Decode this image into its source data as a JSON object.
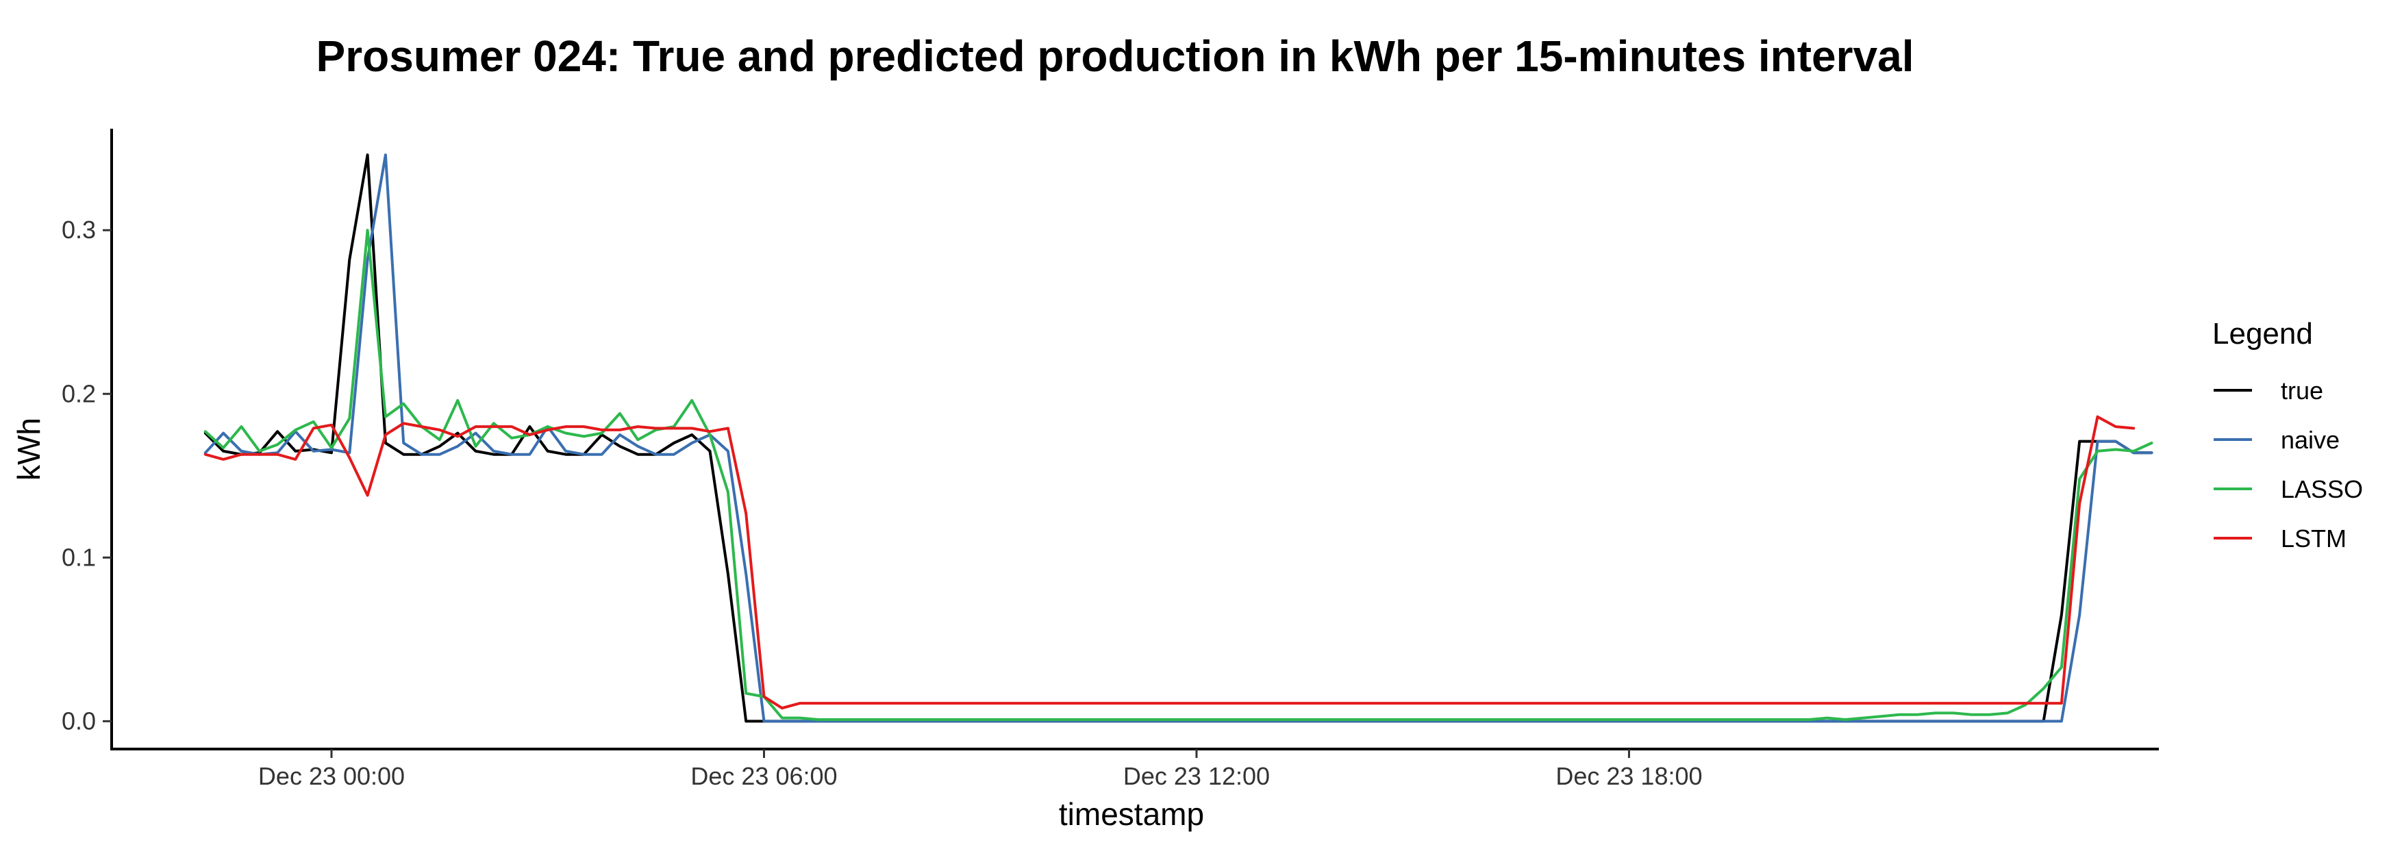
{
  "chart_data": {
    "type": "line",
    "title": "Prosumer 024: True and predicted production in kWh per 15-minutes interval",
    "xlabel": "timestamp",
    "ylabel": "kWh",
    "x_start": "Dec 23 00:00",
    "x_start_hours": -1.75,
    "x_step_hours": 0.25,
    "xlim_hours": [
      -3.05,
      25.35
    ],
    "ylim": [
      -0.017,
      0.362
    ],
    "x_ticks": [
      {
        "label": "Dec 23 00:00",
        "hours": 0
      },
      {
        "label": "Dec 23 06:00",
        "hours": 6
      },
      {
        "label": "Dec 23 12:00",
        "hours": 12
      },
      {
        "label": "Dec 23 18:00",
        "hours": 18
      }
    ],
    "y_ticks": [
      {
        "label": "0.0",
        "value": 0.0
      },
      {
        "label": "0.1",
        "value": 0.1
      },
      {
        "label": "0.2",
        "value": 0.2
      },
      {
        "label": "0.3",
        "value": 0.3
      }
    ],
    "grid": false,
    "legend": {
      "title": "Legend",
      "position": "right"
    },
    "series": [
      {
        "name": "true",
        "color": "#000000",
        "values": [
          0.176,
          0.165,
          0.163,
          0.164,
          0.177,
          0.165,
          0.166,
          0.164,
          0.282,
          0.346,
          0.17,
          0.163,
          0.163,
          0.168,
          0.176,
          0.165,
          0.163,
          0.163,
          0.18,
          0.165,
          0.163,
          0.163,
          0.175,
          0.168,
          0.163,
          0.163,
          0.17,
          0.175,
          0.165,
          0.09,
          0.0,
          0.0,
          0.0,
          0.0,
          0.0,
          0.0,
          0.0,
          0.0,
          0.0,
          0.0,
          0.0,
          0.0,
          0.0,
          0.0,
          0.0,
          0.0,
          0.0,
          0.0,
          0.0,
          0.0,
          0.0,
          0.0,
          0.0,
          0.0,
          0.0,
          0.0,
          0.0,
          0.0,
          0.0,
          0.0,
          0.0,
          0.0,
          0.0,
          0.0,
          0.0,
          0.0,
          0.0,
          0.0,
          0.0,
          0.0,
          0.0,
          0.0,
          0.0,
          0.0,
          0.0,
          0.0,
          0.0,
          0.0,
          0.0,
          0.0,
          0.0,
          0.0,
          0.0,
          0.0,
          0.0,
          0.0,
          0.0,
          0.0,
          0.0,
          0.0,
          0.0,
          0.0,
          0.0,
          0.0,
          0.0,
          0.0,
          0.0,
          0.0,
          0.0,
          0.0,
          0.0,
          0.0,
          0.0,
          0.065,
          0.171,
          0.171,
          0.171,
          0.164,
          0.164
        ]
      },
      {
        "name": "naive",
        "color": "#3a6fb0",
        "values": [
          0.164,
          0.176,
          0.165,
          0.163,
          0.164,
          0.177,
          0.165,
          0.166,
          0.164,
          0.282,
          0.346,
          0.17,
          0.163,
          0.163,
          0.168,
          0.176,
          0.165,
          0.163,
          0.163,
          0.18,
          0.165,
          0.163,
          0.163,
          0.175,
          0.168,
          0.163,
          0.163,
          0.17,
          0.175,
          0.165,
          0.09,
          0.0,
          0.0,
          0.0,
          0.0,
          0.0,
          0.0,
          0.0,
          0.0,
          0.0,
          0.0,
          0.0,
          0.0,
          0.0,
          0.0,
          0.0,
          0.0,
          0.0,
          0.0,
          0.0,
          0.0,
          0.0,
          0.0,
          0.0,
          0.0,
          0.0,
          0.0,
          0.0,
          0.0,
          0.0,
          0.0,
          0.0,
          0.0,
          0.0,
          0.0,
          0.0,
          0.0,
          0.0,
          0.0,
          0.0,
          0.0,
          0.0,
          0.0,
          0.0,
          0.0,
          0.0,
          0.0,
          0.0,
          0.0,
          0.0,
          0.0,
          0.0,
          0.0,
          0.0,
          0.0,
          0.0,
          0.0,
          0.0,
          0.0,
          0.0,
          0.0,
          0.0,
          0.0,
          0.0,
          0.0,
          0.0,
          0.0,
          0.0,
          0.0,
          0.0,
          0.0,
          0.0,
          0.0,
          0.0,
          0.065,
          0.171,
          0.171,
          0.164,
          0.164
        ]
      },
      {
        "name": "LASSO",
        "color": "#2db84d",
        "values": [
          0.177,
          0.167,
          0.18,
          0.165,
          0.169,
          0.178,
          0.183,
          0.167,
          0.185,
          0.3,
          0.186,
          0.194,
          0.18,
          0.172,
          0.196,
          0.168,
          0.182,
          0.173,
          0.175,
          0.18,
          0.176,
          0.174,
          0.176,
          0.188,
          0.172,
          0.178,
          0.18,
          0.196,
          0.175,
          0.14,
          0.017,
          0.015,
          0.002,
          0.002,
          0.001,
          0.001,
          0.001,
          0.001,
          0.001,
          0.001,
          0.001,
          0.001,
          0.001,
          0.001,
          0.001,
          0.001,
          0.001,
          0.001,
          0.001,
          0.001,
          0.001,
          0.001,
          0.001,
          0.001,
          0.001,
          0.001,
          0.001,
          0.001,
          0.001,
          0.001,
          0.001,
          0.001,
          0.001,
          0.001,
          0.001,
          0.001,
          0.001,
          0.001,
          0.001,
          0.001,
          0.001,
          0.001,
          0.001,
          0.001,
          0.001,
          0.001,
          0.001,
          0.001,
          0.001,
          0.001,
          0.001,
          0.001,
          0.001,
          0.001,
          0.001,
          0.001,
          0.001,
          0.001,
          0.001,
          0.001,
          0.002,
          0.001,
          0.002,
          0.003,
          0.004,
          0.004,
          0.005,
          0.005,
          0.004,
          0.004,
          0.005,
          0.01,
          0.02,
          0.033,
          0.148,
          0.165,
          0.166,
          0.165,
          0.17
        ]
      },
      {
        "name": "LSTM",
        "color": "#e31a1c",
        "values": [
          0.163,
          0.16,
          0.163,
          0.163,
          0.163,
          0.16,
          0.179,
          0.181,
          0.161,
          0.138,
          0.175,
          0.182,
          0.18,
          0.178,
          0.174,
          0.18,
          0.18,
          0.18,
          0.175,
          0.178,
          0.18,
          0.18,
          0.178,
          0.178,
          0.18,
          0.179,
          0.179,
          0.179,
          0.177,
          0.179,
          0.127,
          0.015,
          0.008,
          0.011,
          0.011,
          0.011,
          0.011,
          0.011,
          0.011,
          0.011,
          0.011,
          0.011,
          0.011,
          0.011,
          0.011,
          0.011,
          0.011,
          0.011,
          0.011,
          0.011,
          0.011,
          0.011,
          0.011,
          0.011,
          0.011,
          0.011,
          0.011,
          0.011,
          0.011,
          0.011,
          0.011,
          0.011,
          0.011,
          0.011,
          0.011,
          0.011,
          0.011,
          0.011,
          0.011,
          0.011,
          0.011,
          0.011,
          0.011,
          0.011,
          0.011,
          0.011,
          0.011,
          0.011,
          0.011,
          0.011,
          0.011,
          0.011,
          0.011,
          0.011,
          0.011,
          0.011,
          0.011,
          0.011,
          0.011,
          0.011,
          0.011,
          0.011,
          0.011,
          0.011,
          0.011,
          0.011,
          0.011,
          0.011,
          0.011,
          0.011,
          0.011,
          0.011,
          0.011,
          0.011,
          0.133,
          0.186,
          0.18,
          0.179
        ]
      }
    ]
  }
}
